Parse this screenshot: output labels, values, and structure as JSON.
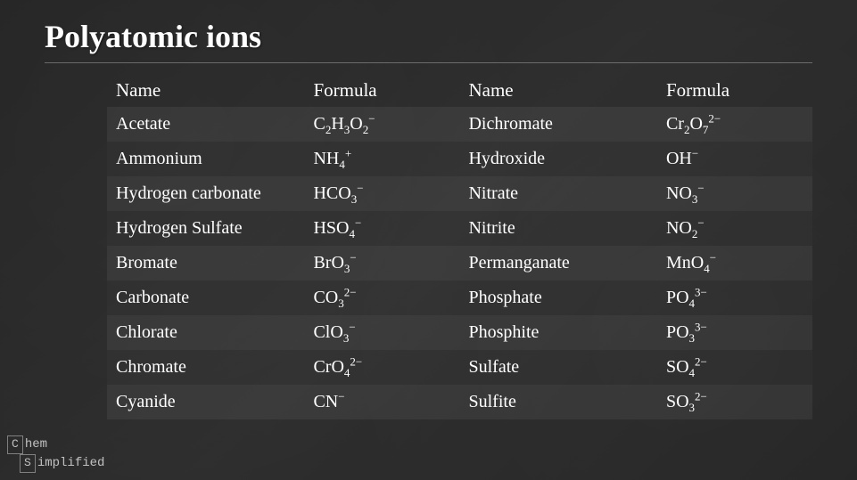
{
  "title": "Polyatomic ions",
  "headers": {
    "name1": "Name",
    "formula1": "Formula",
    "name2": "Name",
    "formula2": "Formula"
  },
  "rows": [
    {
      "name1": "Acetate",
      "formula1": {
        "base": "C",
        "sub1": "2",
        "mid1": "H",
        "sub2": "3",
        "mid2": "O",
        "sub3": "2",
        "sup": "−"
      },
      "name2": "Dichromate",
      "formula2": {
        "base": "Cr",
        "sub1": "2",
        "mid1": "O",
        "sub2": "7",
        "sup": "2−"
      }
    },
    {
      "name1": "Ammonium",
      "formula1": {
        "base": "NH",
        "sub1": "4",
        "sup": "+"
      },
      "name2": "Hydroxide",
      "formula2": {
        "base": "OH",
        "sup": "−"
      }
    },
    {
      "name1": "Hydrogen carbonate",
      "formula1": {
        "base": "HCO",
        "sub1": "3",
        "sup": "−"
      },
      "name2": "Nitrate",
      "formula2": {
        "base": "NO",
        "sub1": "3",
        "sup": "−"
      }
    },
    {
      "name1": "Hydrogen Sulfate",
      "formula1": {
        "base": "HSO",
        "sub1": "4",
        "sup": "−"
      },
      "name2": "Nitrite",
      "formula2": {
        "base": "NO",
        "sub1": "2",
        "sup": "−"
      }
    },
    {
      "name1": "Bromate",
      "formula1": {
        "base": "BrO",
        "sub1": "3",
        "sup": "−"
      },
      "name2": "Permanganate",
      "formula2": {
        "base": "MnO",
        "sub1": "4",
        "sup": "−"
      }
    },
    {
      "name1": "Carbonate",
      "formula1": {
        "base": "CO",
        "sub1": "3",
        "sup": "2−"
      },
      "name2": "Phosphate",
      "formula2": {
        "base": "PO",
        "sub1": "4",
        "sup": "3−"
      }
    },
    {
      "name1": "Chlorate",
      "formula1": {
        "base": "ClO",
        "sub1": "3",
        "sup": "−"
      },
      "name2": "Phosphite",
      "formula2": {
        "base": "PO",
        "sub1": "3",
        "sup": "3−"
      }
    },
    {
      "name1": "Chromate",
      "formula1": {
        "base": "CrO",
        "sub1": "4",
        "sup": "2−"
      },
      "name2": "Sulfate",
      "formula2": {
        "base": "SO",
        "sub1": "4",
        "sup": "2−"
      }
    },
    {
      "name1": "Cyanide",
      "formula1": {
        "base": "CN",
        "sup": "−"
      },
      "name2": "Sulfite",
      "formula2": {
        "base": "SO",
        "sub1": "3",
        "sup": "2−"
      }
    }
  ],
  "logo": {
    "line1_box": "C",
    "line1_rest": "hem",
    "line2_box": "S",
    "line2_rest": "implified"
  },
  "style": {
    "background_color": "#2a2a2a",
    "text_color": "#ffffff",
    "row_stripe_color": "rgba(255,255,255,0.06)",
    "title_fontsize": 36,
    "header_fontsize": 21,
    "cell_fontsize": 20,
    "font_family": "handwritten"
  }
}
